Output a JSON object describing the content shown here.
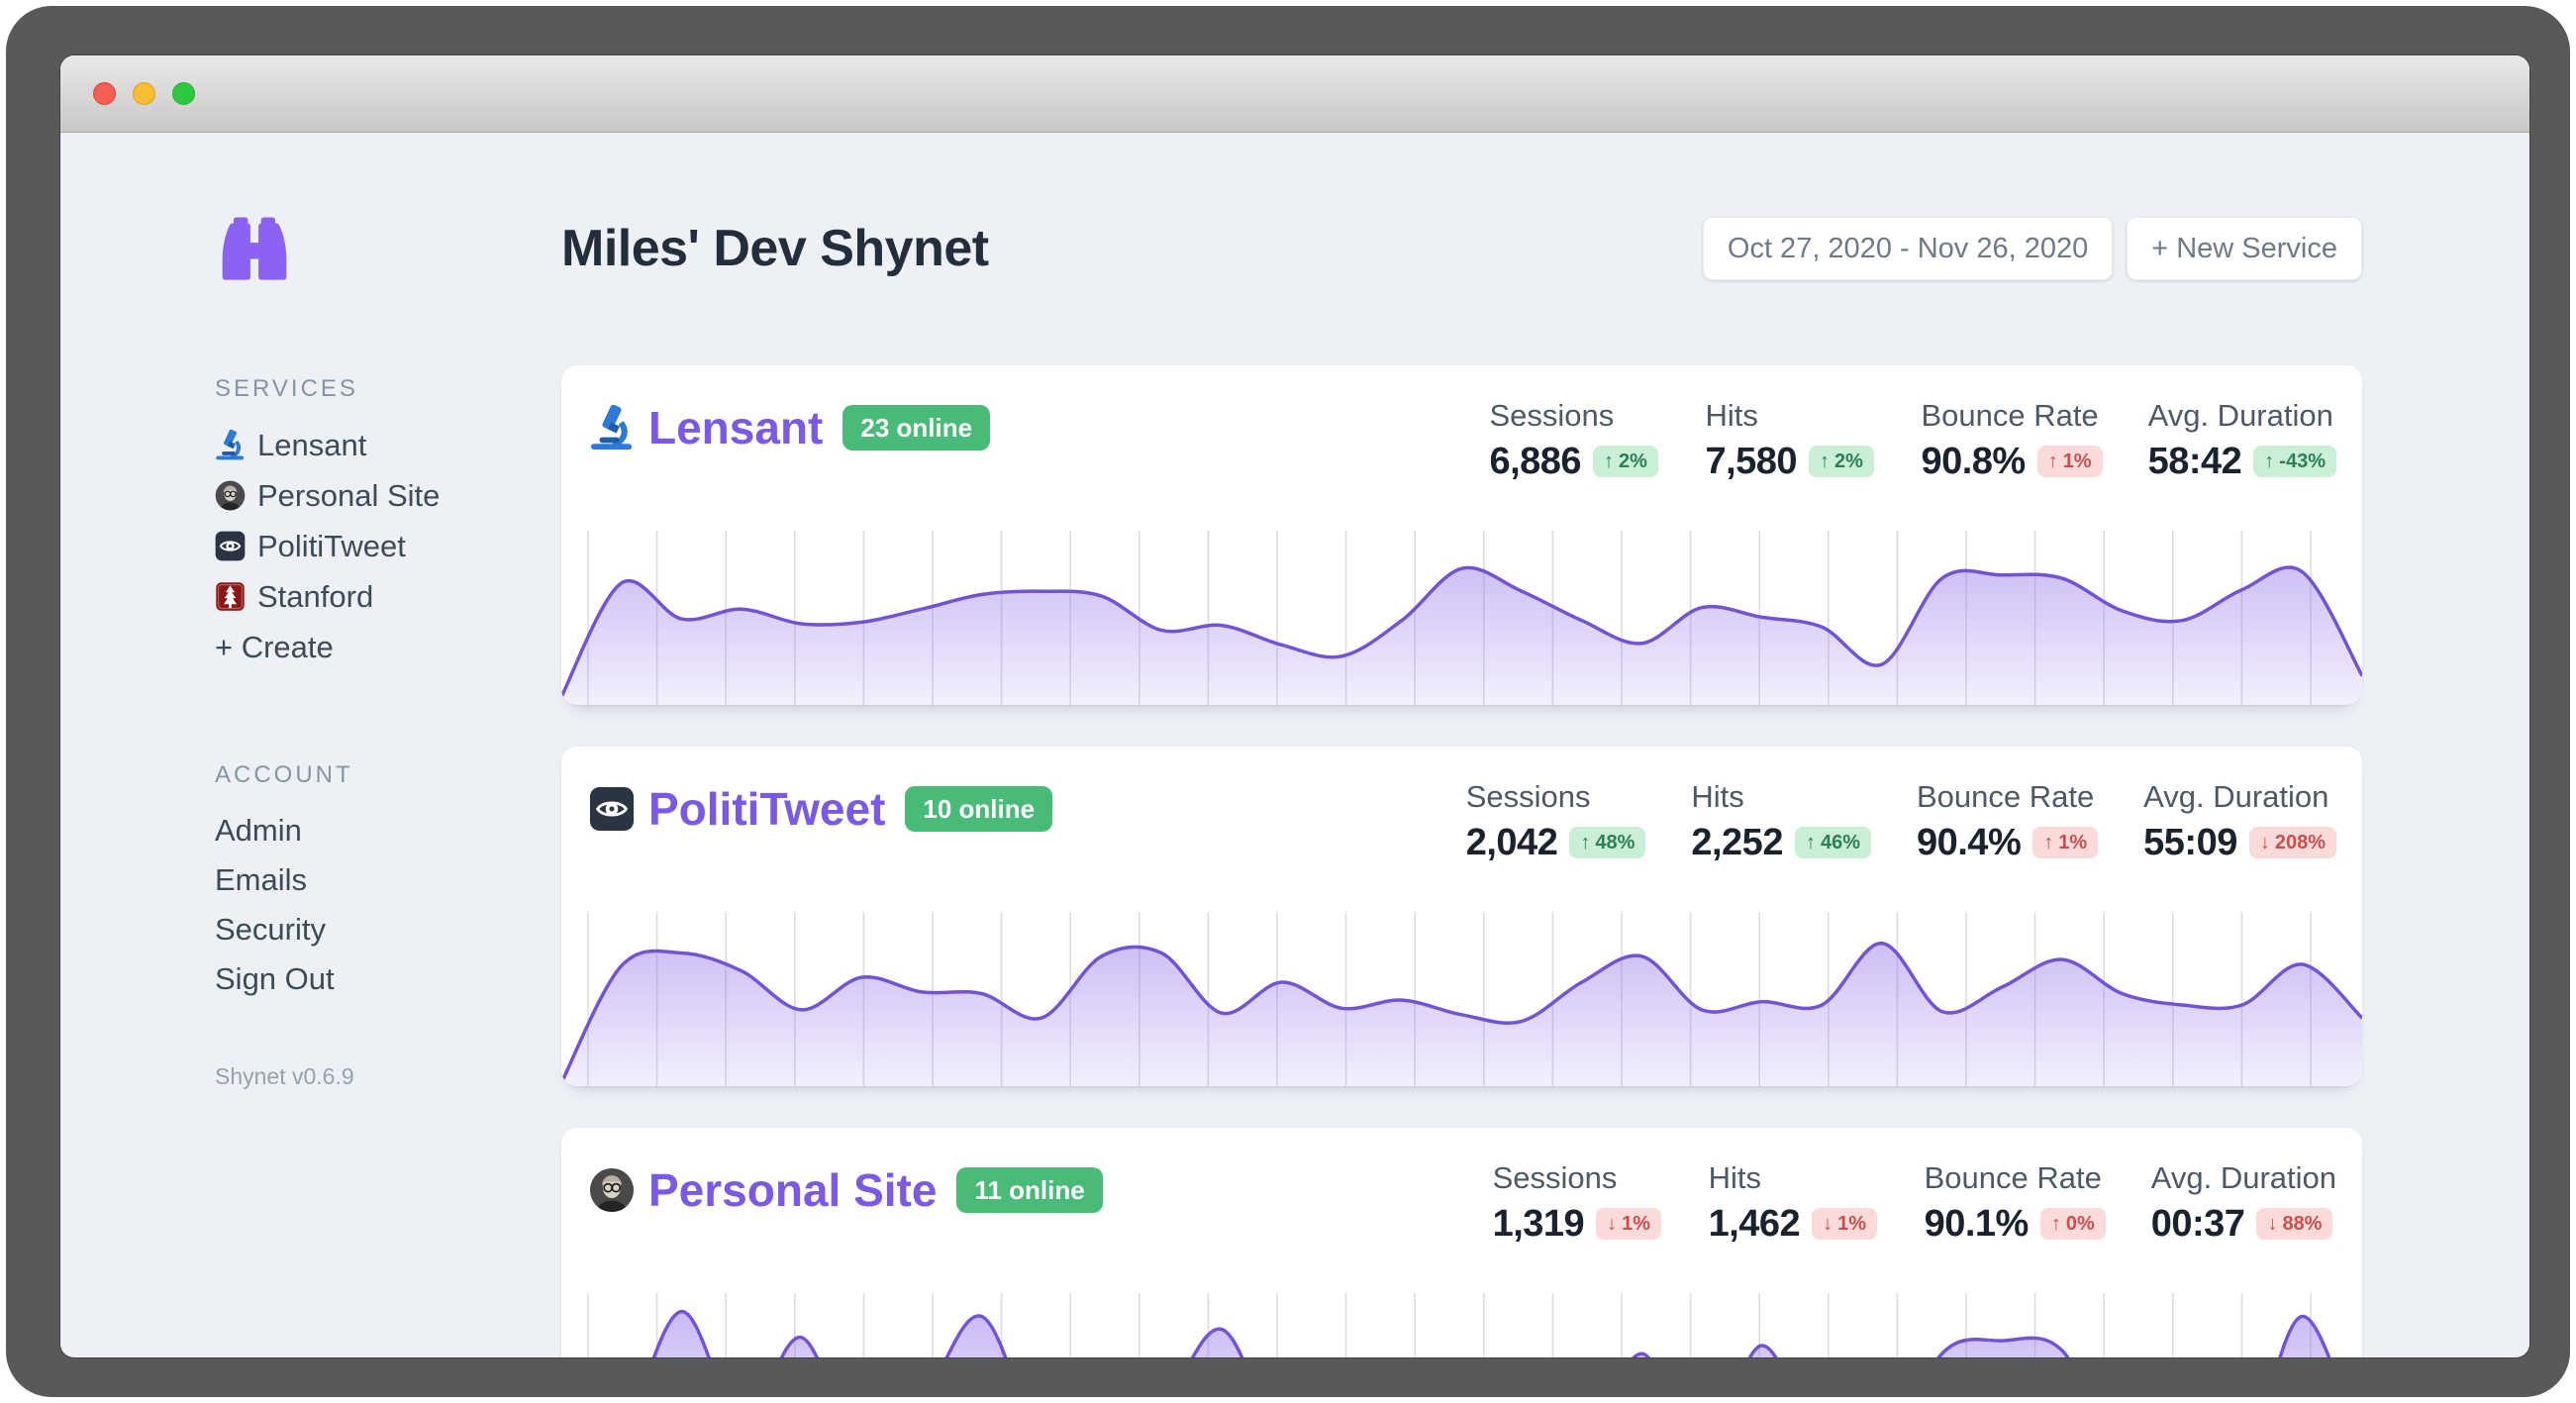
{
  "window": {
    "traffic_lights": [
      {
        "name": "close",
        "color": "#f55f57",
        "border": "#e0443e"
      },
      {
        "name": "minimize",
        "color": "#f9bd35",
        "border": "#dfa023"
      },
      {
        "name": "zoom",
        "color": "#30c740",
        "border": "#2aae39"
      }
    ]
  },
  "sidebar": {
    "logo_icon": "binoculars",
    "sections": [
      {
        "title": "SERVICES",
        "items": [
          {
            "label": "Lensant",
            "icon": "microscope"
          },
          {
            "label": "Personal Site",
            "icon": "avatar"
          },
          {
            "label": "PolitiTweet",
            "icon": "eye"
          },
          {
            "label": "Stanford",
            "icon": "stanford"
          },
          {
            "label": "+ Create",
            "icon": null
          }
        ]
      },
      {
        "title": "ACCOUNT",
        "items": [
          {
            "label": "Admin",
            "icon": null
          },
          {
            "label": "Emails",
            "icon": null
          },
          {
            "label": "Security",
            "icon": null
          },
          {
            "label": "Sign Out",
            "icon": null
          }
        ]
      }
    ],
    "version": "Shynet v0.6.9"
  },
  "header": {
    "title": "Miles' Dev Shynet",
    "date_range": "Oct 27, 2020 - Nov 26, 2020",
    "new_service": "+ New Service"
  },
  "cards": [
    {
      "name": "Lensant",
      "icon": "microscope",
      "online": "23 online",
      "stats": [
        {
          "label": "Sessions",
          "value": "6,886",
          "arrow": "↑",
          "delta": "2%",
          "tone": "green"
        },
        {
          "label": "Hits",
          "value": "7,580",
          "arrow": "↑",
          "delta": "2%",
          "tone": "green"
        },
        {
          "label": "Bounce Rate",
          "value": "90.8%",
          "arrow": "↑",
          "delta": "1%",
          "tone": "red"
        },
        {
          "label": "Avg. Duration",
          "value": "58:42",
          "arrow": "↑",
          "delta": "-43%",
          "tone": "green"
        }
      ],
      "chart": {
        "type": "area",
        "points": [
          5,
          75,
          53,
          59,
          50,
          51,
          59,
          68,
          70,
          67,
          46,
          49,
          37,
          30,
          52,
          84,
          70,
          52,
          38,
          60,
          54,
          48,
          25,
          78,
          80,
          78,
          58,
          52,
          71,
          82,
          18
        ]
      }
    },
    {
      "name": "PolitiTweet",
      "icon": "eye",
      "online": "10 online",
      "stats": [
        {
          "label": "Sessions",
          "value": "2,042",
          "arrow": "↑",
          "delta": "48%",
          "tone": "green"
        },
        {
          "label": "Hits",
          "value": "2,252",
          "arrow": "↑",
          "delta": "46%",
          "tone": "green"
        },
        {
          "label": "Bounce Rate",
          "value": "90.4%",
          "arrow": "↑",
          "delta": "1%",
          "tone": "red"
        },
        {
          "label": "Avg. Duration",
          "value": "55:09",
          "arrow": "↓",
          "delta": "208%",
          "tone": "red"
        }
      ],
      "chart": {
        "type": "area",
        "points": [
          2,
          74,
          82,
          71,
          47,
          67,
          58,
          57,
          42,
          80,
          82,
          45,
          64,
          48,
          53,
          44,
          40,
          64,
          80,
          47,
          52,
          50,
          88,
          46,
          61,
          78,
          57,
          50,
          50,
          75,
          42
        ]
      }
    },
    {
      "name": "Personal Site",
      "icon": "avatar",
      "online": "11 online",
      "stats": [
        {
          "label": "Sessions",
          "value": "1,319",
          "arrow": "↓",
          "delta": "1%",
          "tone": "red"
        },
        {
          "label": "Hits",
          "value": "1,462",
          "arrow": "↓",
          "delta": "1%",
          "tone": "red"
        },
        {
          "label": "Bounce Rate",
          "value": "90.1%",
          "arrow": "↑",
          "delta": "0%",
          "tone": "red"
        },
        {
          "label": "Avg. Duration",
          "value": "00:37",
          "arrow": "↓",
          "delta": "88%",
          "tone": "red"
        }
      ],
      "chart": {
        "type": "area",
        "points": [
          0,
          20,
          96,
          28,
          80,
          8,
          40,
          93,
          14,
          0,
          35,
          85,
          14,
          0,
          0,
          0,
          0,
          8,
          70,
          5,
          75,
          8,
          0,
          70,
          78,
          72,
          5,
          0,
          0,
          93,
          8
        ]
      }
    }
  ],
  "chart_style": {
    "line_color": "#7252d6",
    "fill_color": "#8a67e8",
    "grid_color": "#dddde4",
    "gridline_count": 26
  }
}
